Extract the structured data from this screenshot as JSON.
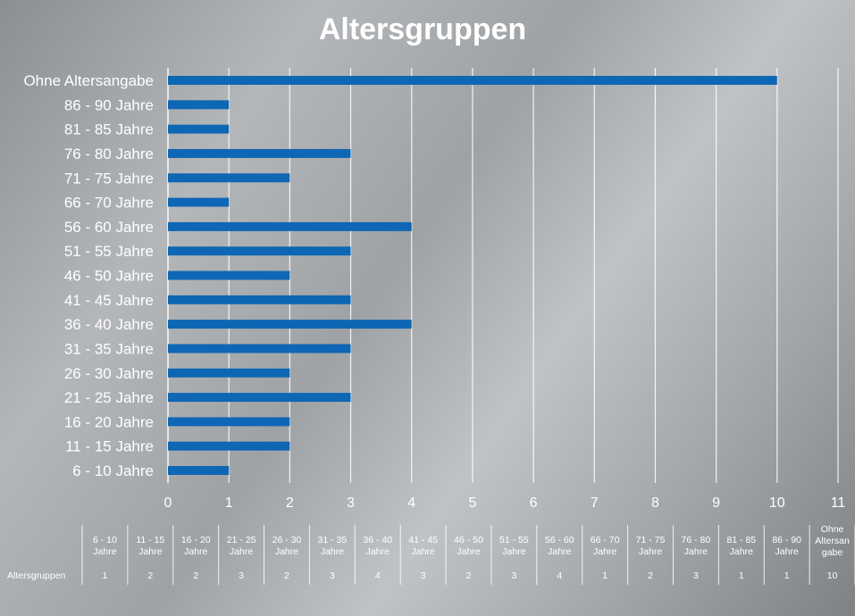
{
  "chart_data": {
    "type": "bar",
    "orientation": "horizontal",
    "title": "Altersgruppen",
    "categories": [
      "6 - 10 Jahre",
      "11 - 15 Jahre",
      "16 - 20 Jahre",
      "21 - 25 Jahre",
      "26 - 30 Jahre",
      "31 - 35 Jahre",
      "36 - 40 Jahre",
      "41 - 45 Jahre",
      "46 - 50 Jahre",
      "51 - 55 Jahre",
      "56 - 60 Jahre",
      "66 - 70 Jahre",
      "71 - 75 Jahre",
      "76 - 80 Jahre",
      "81 - 85 Jahre",
      "86 - 90 Jahre",
      "Ohne Altersangabe"
    ],
    "series": [
      {
        "name": "Altersgruppen",
        "values": [
          1,
          2,
          2,
          3,
          2,
          3,
          4,
          3,
          2,
          3,
          4,
          1,
          2,
          3,
          1,
          1,
          10
        ]
      }
    ],
    "xlim": [
      0,
      11
    ],
    "xticks": [
      "0",
      "1",
      "2",
      "3",
      "4",
      "5",
      "6",
      "7",
      "8",
      "9",
      "10",
      "11"
    ],
    "grid": true,
    "bar_color": "#0e67b4",
    "data_table": {
      "row_label": "Altersgruppen",
      "headers": [
        [
          "6 - 10",
          "Jahre"
        ],
        [
          "11 - 15",
          "Jahre"
        ],
        [
          "16 - 20",
          "Jahre"
        ],
        [
          "21 - 25",
          "Jahre"
        ],
        [
          "26 - 30",
          "Jahre"
        ],
        [
          "31 - 35",
          "Jahre"
        ],
        [
          "36 - 40",
          "Jahre"
        ],
        [
          "41 - 45",
          "Jahre"
        ],
        [
          "46 - 50",
          "Jahre"
        ],
        [
          "51 - 55",
          "Jahre"
        ],
        [
          "56 - 60",
          "Jahre"
        ],
        [
          "66 - 70",
          "Jahre"
        ],
        [
          "71 - 75",
          "Jahre"
        ],
        [
          "76 - 80",
          "Jahre"
        ],
        [
          "81 - 85",
          "Jahre"
        ],
        [
          "86 - 90",
          "Jahre"
        ],
        [
          "Ohne",
          "Altersan",
          "gabe"
        ]
      ],
      "values": [
        "1",
        "2",
        "2",
        "3",
        "2",
        "3",
        "4",
        "3",
        "2",
        "3",
        "4",
        "1",
        "2",
        "3",
        "1",
        "1",
        "10"
      ]
    }
  }
}
